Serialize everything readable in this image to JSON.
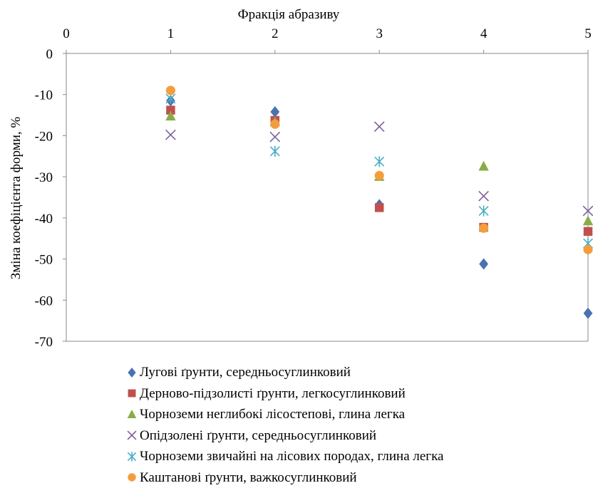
{
  "chart_data": {
    "type": "scatter",
    "title": "",
    "xlabel": "Фракція абразиву",
    "ylabel": "Зміна коефіцієнта форми, %",
    "xlim": [
      0,
      5
    ],
    "ylim": [
      -70,
      0
    ],
    "x_ticks": [
      "0",
      "1",
      "2",
      "3",
      "4",
      "5"
    ],
    "y_ticks": [
      "0",
      "-10",
      "-20",
      "-30",
      "-40",
      "-50",
      "-60",
      "-70"
    ],
    "x_axis_position": "top",
    "grid": false,
    "legend_position": "bottom",
    "series": [
      {
        "name": "Лугові ґрунти, середньосуглинковий",
        "marker": "diamond",
        "color": "#4a72b0",
        "x": [
          1,
          2,
          3,
          4,
          5
        ],
        "y": [
          -11.5,
          -14.2,
          -36.8,
          -51.2,
          -63.2
        ]
      },
      {
        "name": "Дерново-підзолисті ґрунти, легкосуглинковий",
        "marker": "square",
        "color": "#c0504d",
        "x": [
          1,
          2,
          3,
          4,
          5
        ],
        "y": [
          -13.8,
          -16.3,
          -37.5,
          -42.3,
          -43.3
        ]
      },
      {
        "name": "Чорноземи неглибокі лісостепові, глина легка",
        "marker": "triangle",
        "color": "#8aac46",
        "x": [
          1,
          2,
          3,
          4,
          5
        ],
        "y": [
          -15.3,
          -16.7,
          -30.0,
          -27.5,
          -40.8
        ]
      },
      {
        "name": "Опідзолені ґрунти, середньосуглинковий",
        "marker": "x",
        "color": "#7d60a0",
        "x": [
          1,
          2,
          3,
          4,
          5
        ],
        "y": [
          -19.8,
          -20.3,
          -17.8,
          -34.7,
          -38.3
        ]
      },
      {
        "name": "Чорноземи звичайні на лісових породах, глина легка",
        "marker": "star",
        "color": "#4bacc6",
        "x": [
          1,
          2,
          3,
          4,
          5
        ],
        "y": [
          -11.0,
          -23.8,
          -26.3,
          -38.3,
          -46.2
        ]
      },
      {
        "name": "Каштанові ґрунти, важкосуглинковий",
        "marker": "circle",
        "color": "#f59d3d",
        "x": [
          1,
          2,
          3,
          4,
          5
        ],
        "y": [
          -9.0,
          -17.2,
          -29.7,
          -42.5,
          -47.7
        ]
      }
    ]
  }
}
